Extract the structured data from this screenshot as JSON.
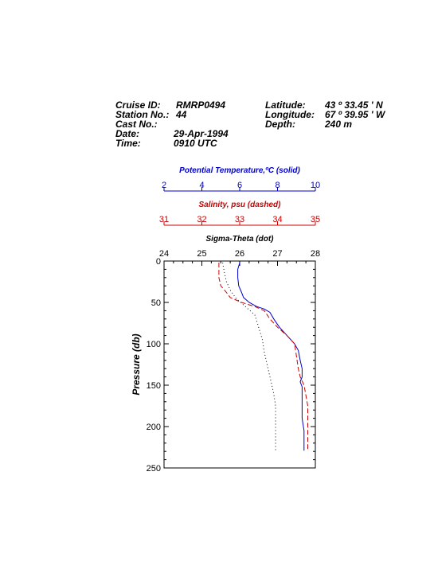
{
  "header": {
    "cruise_label": "Cruise ID:",
    "cruise_value": "RMRP0494",
    "station_label": "Station No.:",
    "station_value": "44",
    "cast_label": "Cast No.:",
    "cast_value": "",
    "date_label": "Date:",
    "date_value": "29-Apr-1994",
    "time_label": "Time:",
    "time_value": "0910 UTC",
    "lat_label": "Latitude:",
    "lat_value": "43 º 33.45 ' N",
    "lon_label": "Longitude:",
    "lon_value": "67 º 39.95 ' W",
    "depth_label": "Depth:",
    "depth_value": "240 m"
  },
  "colors": {
    "temperature": "#0000cc",
    "salinity": "#cc0000",
    "sigma": "#000000"
  },
  "chart_data": {
    "type": "line",
    "ylabel": "Pressure (db)",
    "ylim": [
      250,
      0
    ],
    "yticks": [
      0,
      50,
      100,
      150,
      200,
      250
    ],
    "axes": [
      {
        "key": "temperature",
        "label": "Potential Temperature,ºC (solid)",
        "range": [
          2,
          10
        ],
        "ticks": [
          2,
          4,
          6,
          8,
          10
        ],
        "color": "#0000cc"
      },
      {
        "key": "salinity",
        "label": "Salinity, psu  (dashed)",
        "range": [
          31,
          35
        ],
        "ticks": [
          31,
          32,
          33,
          34,
          35
        ],
        "color": "#cc0000"
      },
      {
        "key": "sigma",
        "label": "Sigma-Theta (dot)",
        "range": [
          24,
          28
        ],
        "ticks": [
          24,
          25,
          26,
          27,
          28
        ],
        "color": "#000000"
      }
    ],
    "series": [
      {
        "key": "temperature",
        "style": "solid",
        "points": [
          [
            6.0,
            2
          ],
          [
            5.9,
            10
          ],
          [
            5.9,
            20
          ],
          [
            5.95,
            30
          ],
          [
            6.1,
            38
          ],
          [
            6.2,
            44
          ],
          [
            6.5,
            50
          ],
          [
            6.9,
            55
          ],
          [
            7.3,
            58
          ],
          [
            7.6,
            62
          ],
          [
            7.8,
            70
          ],
          [
            8.1,
            80
          ],
          [
            8.5,
            90
          ],
          [
            8.9,
            100
          ],
          [
            9.1,
            108
          ],
          [
            9.2,
            120
          ],
          [
            9.3,
            130
          ],
          [
            9.3,
            140
          ],
          [
            9.2,
            146
          ],
          [
            9.3,
            152
          ],
          [
            9.3,
            160
          ],
          [
            9.3,
            175
          ],
          [
            9.3,
            190
          ],
          [
            9.4,
            205
          ],
          [
            9.4,
            229
          ]
        ]
      },
      {
        "key": "salinity",
        "style": "dashed",
        "points": [
          [
            32.45,
            2
          ],
          [
            32.45,
            10
          ],
          [
            32.45,
            20
          ],
          [
            32.5,
            30
          ],
          [
            32.65,
            38
          ],
          [
            32.75,
            44
          ],
          [
            33.05,
            50
          ],
          [
            33.4,
            55
          ],
          [
            33.65,
            60
          ],
          [
            33.8,
            70
          ],
          [
            34.0,
            80
          ],
          [
            34.25,
            90
          ],
          [
            34.45,
            100
          ],
          [
            34.5,
            115
          ],
          [
            34.55,
            130
          ],
          [
            34.6,
            140
          ],
          [
            34.7,
            150
          ],
          [
            34.75,
            162
          ],
          [
            34.8,
            175
          ],
          [
            34.8,
            190
          ],
          [
            34.8,
            205
          ],
          [
            34.8,
            220
          ],
          [
            34.8,
            229
          ]
        ]
      },
      {
        "key": "sigma",
        "style": "dot",
        "points": [
          [
            25.55,
            2
          ],
          [
            25.6,
            15
          ],
          [
            25.65,
            25
          ],
          [
            25.75,
            35
          ],
          [
            25.9,
            45
          ],
          [
            26.15,
            55
          ],
          [
            26.4,
            65
          ],
          [
            26.5,
            80
          ],
          [
            26.6,
            95
          ],
          [
            26.65,
            110
          ],
          [
            26.75,
            130
          ],
          [
            26.85,
            150
          ],
          [
            26.9,
            160
          ],
          [
            26.95,
            175
          ],
          [
            26.95,
            200
          ],
          [
            26.95,
            229
          ]
        ]
      }
    ]
  }
}
